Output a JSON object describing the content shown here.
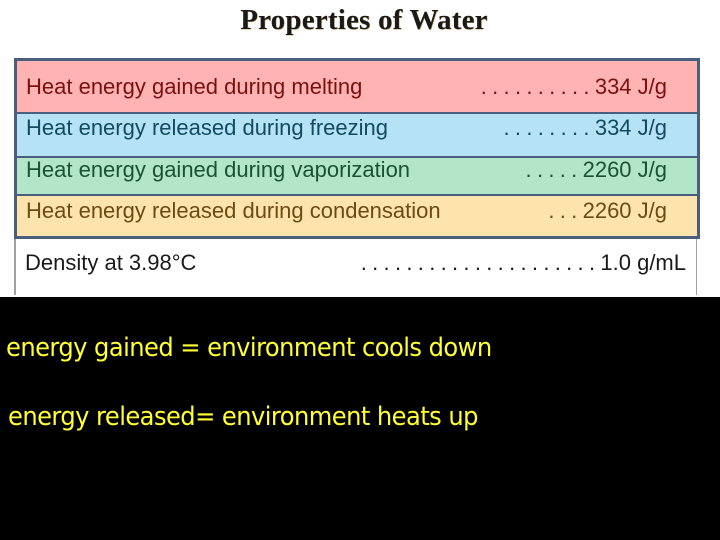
{
  "title": "Properties of Water",
  "table": {
    "rows": [
      {
        "label": "Heat energy gained during melting",
        "leader": "..........",
        "value": "334 J/g",
        "color": "#ffb3b3"
      },
      {
        "label": "Heat energy released during freezing",
        "leader": "........",
        "value": "334 J/g",
        "color": "#b5e3f5"
      },
      {
        "label": "Heat energy gained during vaporization",
        "leader": ".....",
        "value": "2260 J/g",
        "color": "#b3e6c8"
      },
      {
        "label": "Heat energy released during condensation",
        "leader": "...",
        "value": "2260 J/g",
        "color": "#fde4ad"
      }
    ],
    "density": {
      "label": "Density at 3.98°C",
      "leader": ".....................",
      "value": "1.0 g/mL"
    }
  },
  "notes": [
    "energy gained = environment cools down",
    "energy released= environment heats up"
  ],
  "colors": {
    "border": "#4a5f7e",
    "note_text": "#ffff33",
    "background": "#000000"
  }
}
